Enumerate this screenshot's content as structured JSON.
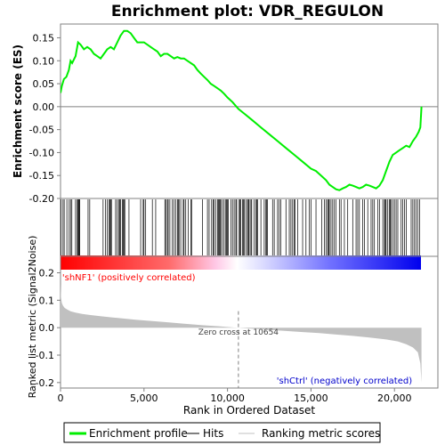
{
  "chart_data": [
    {
      "type": "line",
      "title": "Enrichment plot: VDR_REGULON",
      "ylabel": "Enrichment score (ES)",
      "ylim": [
        -0.2,
        0.18
      ],
      "xlim": [
        0,
        22600
      ],
      "yticks": [
        0.15,
        0.1,
        0.05,
        0.0,
        -0.05,
        -0.1,
        -0.15,
        -0.2
      ],
      "ytick_labels": [
        "0.15",
        "0.10",
        "0.05",
        "0.00",
        "-0.05",
        "-0.10",
        "-0.15",
        "-0.20"
      ],
      "grid": false,
      "series": [
        {
          "name": "Enrichment profile",
          "color": "#00ee00",
          "x": [
            0,
            80,
            200,
            350,
            500,
            600,
            700,
            900,
            1050,
            1200,
            1400,
            1600,
            1800,
            2000,
            2200,
            2400,
            2600,
            2800,
            3000,
            3200,
            3400,
            3600,
            3800,
            4000,
            4200,
            4400,
            4600,
            4800,
            5000,
            5200,
            5400,
            5600,
            5800,
            6000,
            6200,
            6400,
            6600,
            6800,
            7000,
            7200,
            7400,
            7600,
            7800,
            8000,
            8200,
            8400,
            8600,
            8800,
            9000,
            9200,
            9400,
            9600,
            9800,
            10000,
            10300,
            10654,
            11000,
            11500,
            12000,
            12500,
            13000,
            13500,
            14000,
            14500,
            15000,
            15300,
            15600,
            15900,
            16100,
            16300,
            16500,
            16700,
            16900,
            17100,
            17300,
            17500,
            17700,
            17900,
            18100,
            18300,
            18500,
            18700,
            18900,
            19100,
            19300,
            19500,
            19700,
            19900,
            20100,
            20300,
            20500,
            20700,
            20900,
            21100,
            21300,
            21450,
            21550,
            21620
          ],
          "y": [
            0.03,
            0.045,
            0.06,
            0.065,
            0.08,
            0.1,
            0.095,
            0.11,
            0.14,
            0.135,
            0.125,
            0.13,
            0.125,
            0.115,
            0.11,
            0.105,
            0.115,
            0.125,
            0.13,
            0.125,
            0.14,
            0.155,
            0.165,
            0.165,
            0.16,
            0.15,
            0.14,
            0.14,
            0.14,
            0.135,
            0.13,
            0.125,
            0.12,
            0.11,
            0.115,
            0.115,
            0.11,
            0.105,
            0.108,
            0.105,
            0.105,
            0.1,
            0.095,
            0.09,
            0.08,
            0.072,
            0.065,
            0.058,
            0.05,
            0.045,
            0.04,
            0.035,
            0.028,
            0.02,
            0.01,
            -0.005,
            -0.015,
            -0.03,
            -0.045,
            -0.06,
            -0.075,
            -0.09,
            -0.105,
            -0.12,
            -0.135,
            -0.14,
            -0.15,
            -0.16,
            -0.17,
            -0.175,
            -0.18,
            -0.182,
            -0.178,
            -0.175,
            -0.17,
            -0.172,
            -0.175,
            -0.178,
            -0.175,
            -0.17,
            -0.172,
            -0.175,
            -0.178,
            -0.172,
            -0.16,
            -0.14,
            -0.12,
            -0.105,
            -0.1,
            -0.095,
            -0.09,
            -0.085,
            -0.088,
            -0.075,
            -0.065,
            -0.055,
            -0.045,
            0.0
          ]
        }
      ]
    },
    {
      "type": "area",
      "ylabel": "Ranked list metric (Signal2Noise)",
      "xlabel": "Rank in Ordered Dataset",
      "ylim": [
        -0.22,
        0.26
      ],
      "xlim": [
        0,
        22600
      ],
      "yticks": [
        0.2,
        0.1,
        0.0,
        -0.1,
        -0.2
      ],
      "ytick_labels": [
        "0.2",
        "0.1",
        "0.0",
        "-0.1",
        "-0.2"
      ],
      "xticks": [
        0,
        5000,
        10000,
        15000,
        20000
      ],
      "xtick_labels": [
        "0",
        "5,000",
        "10,000",
        "15,000",
        "20,000"
      ],
      "series": [
        {
          "name": "Ranking metric scores",
          "color": "#c0c0c0",
          "x": [
            0,
            30,
            80,
            150,
            250,
            400,
            600,
            900,
            1300,
            1800,
            2500,
            3500,
            4500,
            5500,
            6500,
            7500,
            8500,
            9500,
            10300,
            10654,
            11500,
            12500,
            13500,
            14500,
            15500,
            16500,
            17500,
            18500,
            19500,
            20200,
            20700,
            21100,
            21400,
            21550,
            21620
          ],
          "y": [
            0.16,
            0.11,
            0.09,
            0.08,
            0.072,
            0.066,
            0.06,
            0.055,
            0.05,
            0.046,
            0.041,
            0.035,
            0.029,
            0.024,
            0.019,
            0.014,
            0.009,
            0.005,
            0.001,
            0.0,
            -0.004,
            -0.008,
            -0.012,
            -0.016,
            -0.02,
            -0.025,
            -0.03,
            -0.036,
            -0.043,
            -0.05,
            -0.06,
            -0.072,
            -0.09,
            -0.13,
            -0.2
          ]
        }
      ],
      "annotations": [
        {
          "text": "'shNF1' (positively correlated)",
          "color": "#ff0000",
          "x": 100,
          "y": 0.185
        },
        {
          "text": "Zero cross at 10654",
          "color": "#404040",
          "x": 10654,
          "y": -0.012
        },
        {
          "text": "'shCtrl' (negatively correlated)",
          "color": "#0000cc",
          "x": 20000,
          "y": -0.19
        }
      ]
    }
  ],
  "hits": {
    "name": "Hits",
    "color": "#000000",
    "positions": [
      30,
      150,
      220,
      380,
      520,
      600,
      680,
      900,
      1000,
      1050,
      1080,
      1120,
      1150,
      1650,
      1750,
      2550,
      2700,
      2800,
      2900,
      2950,
      3000,
      3050,
      3300,
      3400,
      3500,
      3550,
      3600,
      3700,
      3750,
      3800,
      3850,
      4100,
      4800,
      4950,
      5000,
      5100,
      5500,
      5700,
      6250,
      6300,
      6400,
      6450,
      6550,
      6700,
      6800,
      6900,
      7000,
      7050,
      7100,
      7200,
      7350,
      7400,
      7500,
      7650,
      7800,
      7850,
      8500,
      8800,
      8900,
      9050,
      9150,
      9200,
      9300,
      9400,
      9450,
      9500,
      9550,
      9600,
      9700,
      9800,
      9900,
      9950,
      10000,
      10050,
      10200,
      10300,
      10400,
      10500,
      10550,
      10700,
      10750,
      10800,
      10900,
      10950,
      11000,
      11100,
      11200,
      11250,
      11300,
      11400,
      11450,
      11600,
      11700,
      11750,
      11800,
      12000,
      12200,
      12300,
      12350,
      12400,
      12700,
      12800,
      13000,
      13100,
      13200,
      13500,
      13700,
      13800,
      13900,
      14000,
      14050,
      14200,
      14500,
      14700,
      14900,
      15000,
      15300,
      15650,
      15800,
      15900,
      16000,
      16050,
      16100,
      16200,
      16300,
      16400,
      16500,
      16700,
      16800,
      17000,
      17200,
      17500,
      17700,
      17800,
      17900,
      18100,
      18200,
      18400,
      18600,
      18700,
      18800,
      19000,
      19100,
      19300,
      19400,
      19450,
      19500,
      19600,
      19700,
      19750,
      19800,
      19900,
      20000,
      20100,
      20200,
      20400,
      20500,
      20600,
      20700,
      21000,
      21100,
      21200,
      21300,
      21400,
      21500
    ]
  },
  "colorbar": {
    "stops": [
      "#ff0000",
      "#ff6a6a",
      "#ffc8e6",
      "#ffffff",
      "#dcdcff",
      "#7070ff",
      "#0000ee"
    ],
    "zero_cross": 10654
  },
  "legend": {
    "placement": "bottom",
    "items": [
      {
        "label": "Enrichment profile",
        "color": "#00ee00",
        "kind": "line-thick"
      },
      {
        "label": "Hits",
        "color": "#000000",
        "kind": "line-thin"
      },
      {
        "label": "Ranking metric scores",
        "color": "#c0c0c0",
        "kind": "line-thin"
      }
    ]
  }
}
